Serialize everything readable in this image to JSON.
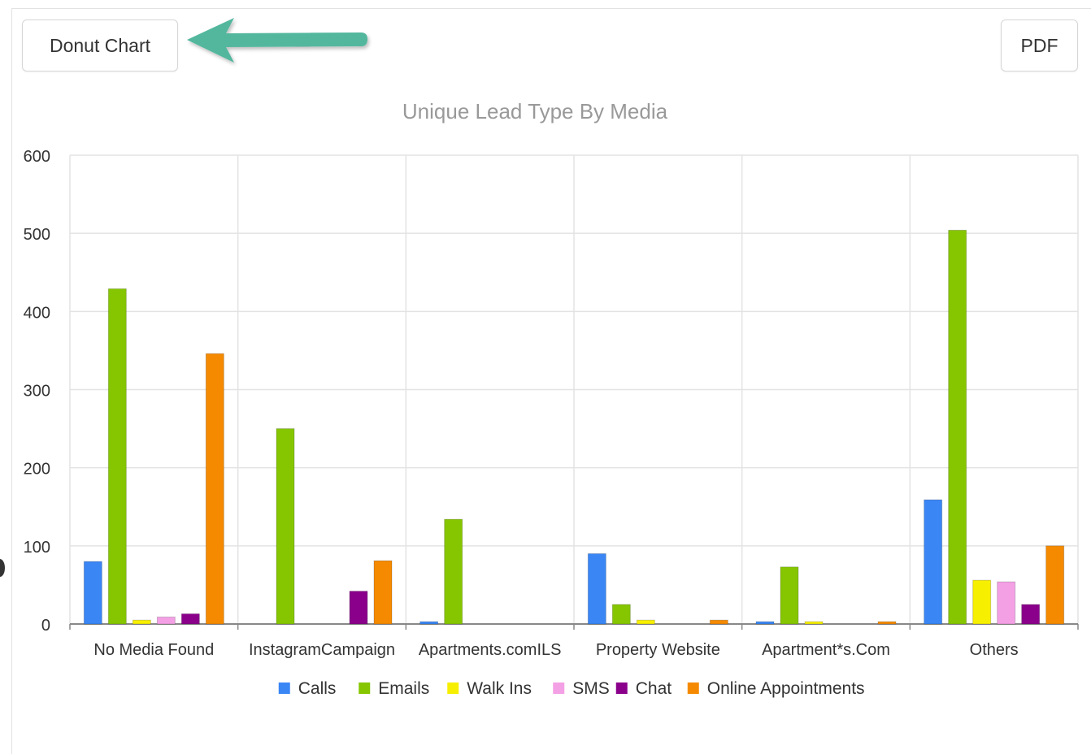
{
  "toolbar": {
    "donut_label": "Donut Chart",
    "pdf_label": "PDF"
  },
  "colors": {
    "arrow": "#52b79e",
    "grid": "#e3e3e3",
    "axis": "#888888"
  },
  "chart_data": {
    "type": "bar",
    "title": "Unique Lead Type By Media",
    "xlabel": "",
    "ylabel": "",
    "ylim": [
      0,
      600
    ],
    "yticks": [
      0,
      100,
      200,
      300,
      400,
      500,
      600
    ],
    "grid": true,
    "legend_position": "bottom-center",
    "categories": [
      "No Media Found",
      "InstagramCampaign",
      "Apartments.comILS",
      "Property Website",
      "Apartment*s.Com",
      "Others"
    ],
    "series": [
      {
        "name": "Calls",
        "color": "#3a86f5",
        "values": [
          80,
          0,
          3,
          90,
          3,
          159
        ]
      },
      {
        "name": "Emails",
        "color": "#86c600",
        "values": [
          429,
          250,
          134,
          25,
          73,
          504
        ]
      },
      {
        "name": "Walk Ins",
        "color": "#f7ef00",
        "values": [
          5,
          0,
          0,
          5,
          3,
          56
        ]
      },
      {
        "name": "SMS",
        "color": "#f4a0e5",
        "values": [
          9,
          0,
          0,
          0,
          0,
          54
        ]
      },
      {
        "name": "Chat",
        "color": "#8b008b",
        "values": [
          13,
          42,
          0,
          0,
          0,
          25
        ]
      },
      {
        "name": "Online Appointments",
        "color": "#f58a00",
        "values": [
          346,
          81,
          0,
          5,
          3,
          100
        ]
      }
    ]
  }
}
